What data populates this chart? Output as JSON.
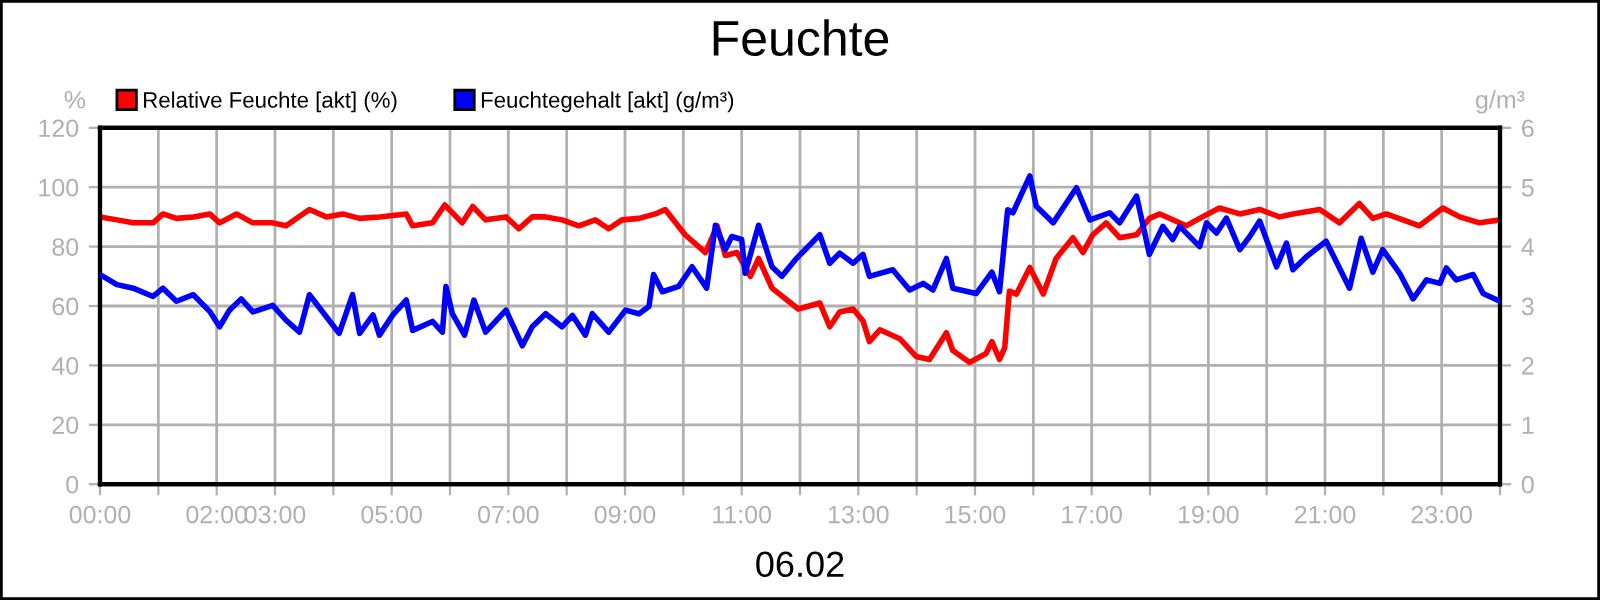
{
  "chart_data": {
    "type": "line",
    "title": "Feuchte",
    "xlabel": "06.02",
    "ylabel": "%",
    "y2label": "g/m³",
    "xlim": [
      0,
      24
    ],
    "xticks": [
      {
        "value": 0,
        "label": "00:00"
      },
      {
        "value": 1,
        "label": null
      },
      {
        "value": 2,
        "label": "02:00"
      },
      {
        "value": 3,
        "label": "03:00"
      },
      {
        "value": 4,
        "label": null
      },
      {
        "value": 5,
        "label": "05:00"
      },
      {
        "value": 6,
        "label": null
      },
      {
        "value": 7,
        "label": "07:00"
      },
      {
        "value": 8,
        "label": null
      },
      {
        "value": 9,
        "label": "09:00"
      },
      {
        "value": 10,
        "label": null
      },
      {
        "value": 11,
        "label": "11:00"
      },
      {
        "value": 12,
        "label": null
      },
      {
        "value": 13,
        "label": "13:00"
      },
      {
        "value": 14,
        "label": null
      },
      {
        "value": 15,
        "label": "15:00"
      },
      {
        "value": 16,
        "label": null
      },
      {
        "value": 17,
        "label": "17:00"
      },
      {
        "value": 18,
        "label": null
      },
      {
        "value": 19,
        "label": "19:00"
      },
      {
        "value": 20,
        "label": null
      },
      {
        "value": 21,
        "label": "21:00"
      },
      {
        "value": 22,
        "label": null
      },
      {
        "value": 23,
        "label": "23:00"
      },
      {
        "value": 24,
        "label": null
      }
    ],
    "ylim": [
      0,
      120
    ],
    "yticks": [
      0,
      20,
      40,
      60,
      80,
      100,
      120
    ],
    "y2lim": [
      0,
      6
    ],
    "y2ticks": [
      0,
      1,
      2,
      3,
      4,
      5,
      6
    ],
    "grid": true,
    "legend": "top left",
    "line_style": "solid",
    "marker": "none",
    "series": [
      {
        "name": "Relative Feuchte [akt] (%)",
        "color": "#ff0000",
        "x": [
          0,
          0.29,
          0.57,
          0.91,
          1.08,
          1.31,
          1.6,
          1.88,
          2.05,
          2.34,
          2.62,
          2.96,
          3.19,
          3.59,
          3.88,
          4.16,
          4.45,
          4.79,
          5.25,
          5.36,
          5.7,
          5.91,
          6.21,
          6.39,
          6.61,
          6.96,
          7.18,
          7.41,
          7.64,
          7.92,
          8.21,
          8.49,
          8.72,
          8.95,
          9.24,
          9.52,
          9.69,
          10.03,
          10.38,
          10.58,
          10.72,
          10.92,
          11.15,
          11.29,
          11.52,
          11.97,
          12.34,
          12.51,
          12.68,
          12.91,
          13.08,
          13.19,
          13.37,
          13.71,
          13.99,
          14.22,
          14.51,
          14.62,
          14.91,
          15.19,
          15.29,
          15.42,
          15.51,
          15.59,
          15.71,
          15.94,
          16.17,
          16.39,
          16.68,
          16.85,
          17.02,
          17.25,
          17.48,
          17.77,
          17.99,
          18.17,
          18.62,
          18.85,
          19.19,
          19.54,
          19.88,
          20.22,
          20.45,
          20.91,
          21.25,
          21.59,
          21.82,
          22.05,
          22.62,
          23.02,
          23.31,
          23.65,
          24.0
        ],
        "values": [
          90,
          89,
          88,
          88,
          91,
          89.5,
          90,
          91,
          88,
          91,
          88,
          88,
          87,
          92.5,
          90,
          91,
          89.5,
          90,
          91,
          87,
          88,
          94,
          88,
          93.5,
          89,
          90,
          86,
          90,
          90,
          89,
          87,
          89,
          86,
          89,
          89.5,
          91,
          92.5,
          84,
          78,
          87,
          77,
          78,
          70,
          76,
          66,
          59,
          61,
          53,
          58,
          59,
          55,
          48,
          52,
          49,
          43,
          42,
          51,
          45,
          41,
          44,
          48,
          42,
          46,
          65,
          64,
          73,
          64,
          76,
          83,
          78,
          84,
          88,
          83,
          84,
          89.5,
          91,
          87,
          89.5,
          93,
          91,
          92.5,
          90,
          91,
          92.5,
          88,
          94.5,
          89.5,
          91,
          87,
          93,
          90,
          88,
          89
        ]
      },
      {
        "name": "Feuchtegehalt [akt] (g/m³)",
        "color": "#0000ff",
        "axis": "y2",
        "x": [
          0,
          0.29,
          0.57,
          0.91,
          1.08,
          1.31,
          1.6,
          1.88,
          2.05,
          2.22,
          2.42,
          2.62,
          2.96,
          3.19,
          3.42,
          3.59,
          3.88,
          4.1,
          4.33,
          4.45,
          4.68,
          4.79,
          5.02,
          5.25,
          5.36,
          5.7,
          5.87,
          5.93,
          6.04,
          6.25,
          6.41,
          6.61,
          6.96,
          7.24,
          7.41,
          7.64,
          7.92,
          8.1,
          8.32,
          8.44,
          8.72,
          9.01,
          9.24,
          9.41,
          9.49,
          9.64,
          9.92,
          10.15,
          10.4,
          10.55,
          10.72,
          10.83,
          11.0,
          11.06,
          11.29,
          11.52,
          11.69,
          11.92,
          12.34,
          12.51,
          12.68,
          12.91,
          13.08,
          13.19,
          13.59,
          13.88,
          14.11,
          14.28,
          14.51,
          14.62,
          15.02,
          15.29,
          15.42,
          15.56,
          15.65,
          15.94,
          16.05,
          16.34,
          16.74,
          16.97,
          17.31,
          17.48,
          17.77,
          17.99,
          18.22,
          18.39,
          18.51,
          18.85,
          18.97,
          19.14,
          19.31,
          19.54,
          19.71,
          19.88,
          20.17,
          20.34,
          20.45,
          20.68,
          21.02,
          21.42,
          21.62,
          21.82,
          21.99,
          22.28,
          22.51,
          22.74,
          22.97,
          23.08,
          23.25,
          23.54,
          23.71,
          24.0
        ],
        "values": [
          3.53,
          3.36,
          3.3,
          3.16,
          3.3,
          3.08,
          3.19,
          2.91,
          2.65,
          2.93,
          3.12,
          2.9,
          3.01,
          2.76,
          2.56,
          3.19,
          2.82,
          2.54,
          3.19,
          2.54,
          2.85,
          2.51,
          2.85,
          3.1,
          2.59,
          2.74,
          2.56,
          3.33,
          2.87,
          2.51,
          3.1,
          2.56,
          2.93,
          2.33,
          2.65,
          2.87,
          2.65,
          2.84,
          2.51,
          2.87,
          2.56,
          2.93,
          2.87,
          2.99,
          3.53,
          3.24,
          3.33,
          3.66,
          3.3,
          4.36,
          3.95,
          4.17,
          4.12,
          3.55,
          4.36,
          3.66,
          3.5,
          3.78,
          4.2,
          3.72,
          3.89,
          3.72,
          3.87,
          3.5,
          3.61,
          3.27,
          3.38,
          3.27,
          3.8,
          3.3,
          3.21,
          3.57,
          3.24,
          4.62,
          4.57,
          5.19,
          4.68,
          4.4,
          4.99,
          4.45,
          4.57,
          4.4,
          4.85,
          3.87,
          4.34,
          4.12,
          4.34,
          4.0,
          4.4,
          4.23,
          4.48,
          3.95,
          4.17,
          4.43,
          3.66,
          4.06,
          3.61,
          3.83,
          4.09,
          3.3,
          4.14,
          3.57,
          3.95,
          3.55,
          3.12,
          3.44,
          3.38,
          3.64,
          3.44,
          3.53,
          3.21,
          3.08
        ]
      }
    ]
  }
}
